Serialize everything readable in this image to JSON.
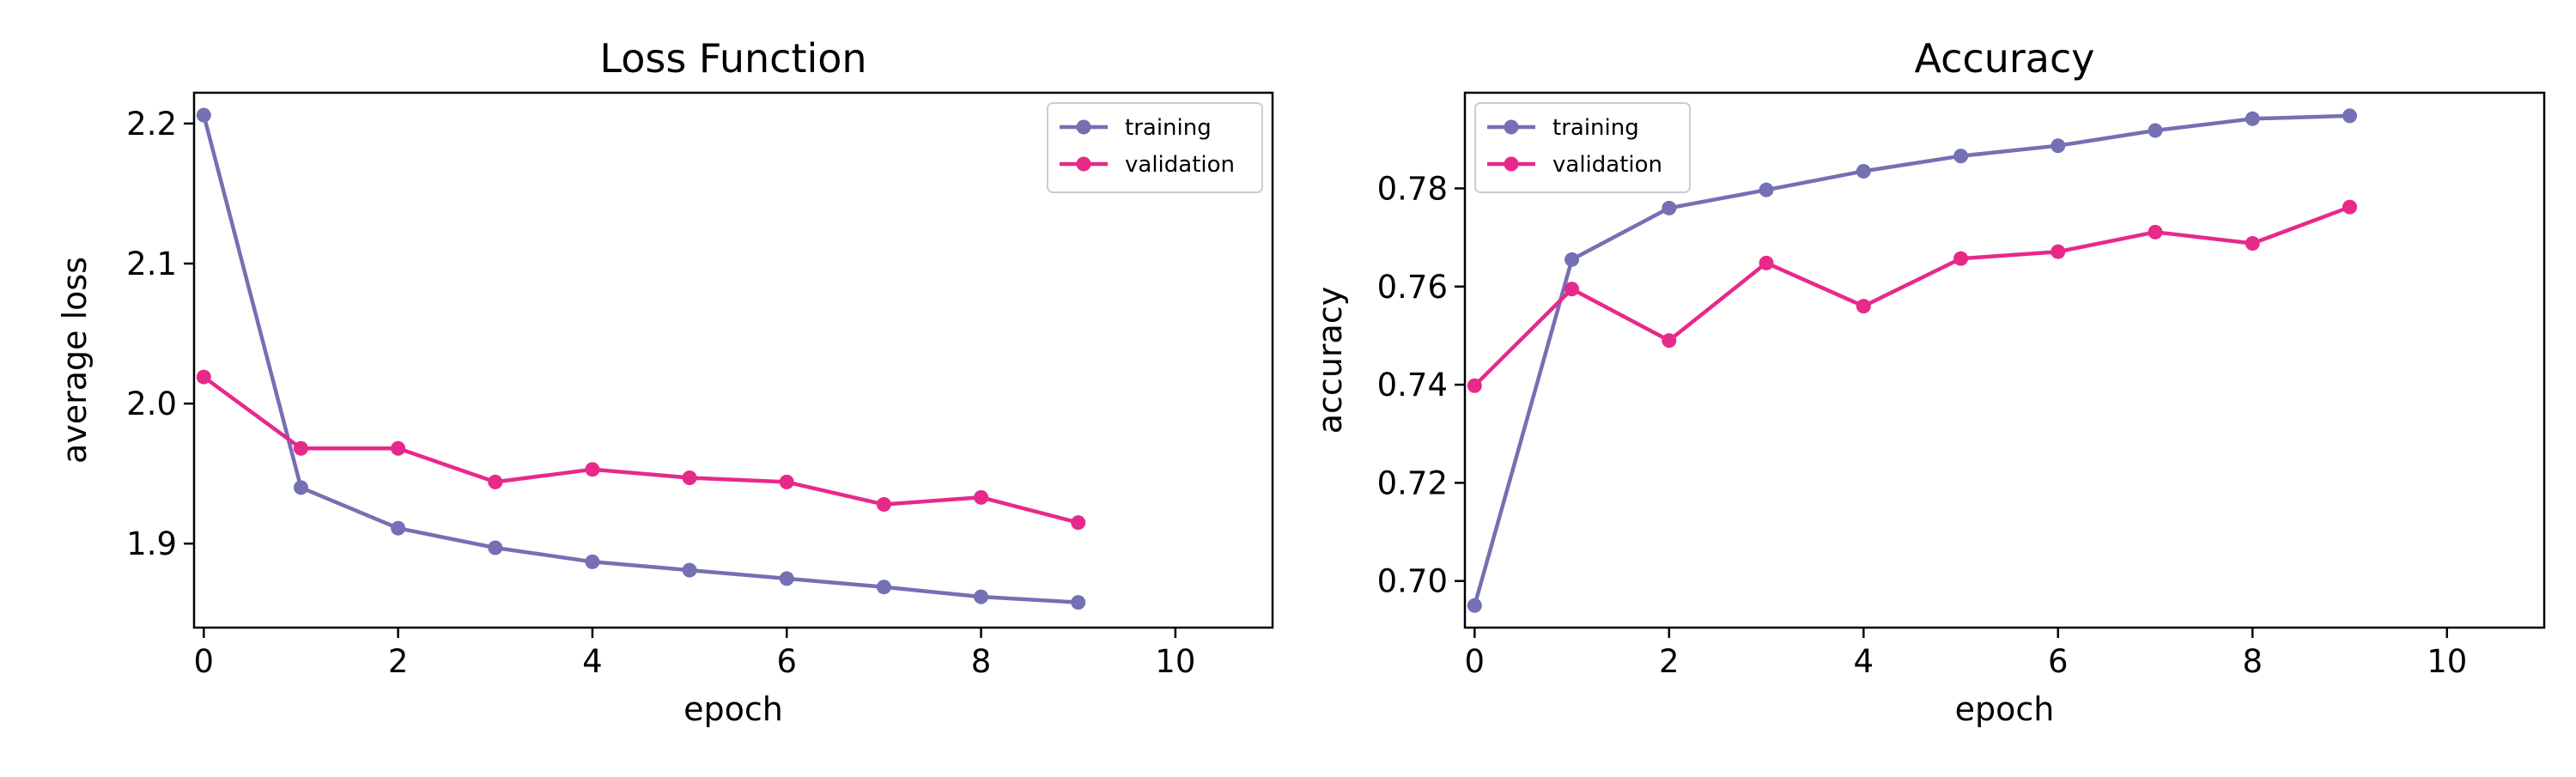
{
  "chart_data": [
    {
      "type": "line",
      "title": "Loss Function",
      "xlabel": "epoch",
      "ylabel": "average loss",
      "xlim": [
        -0.1,
        11
      ],
      "ylim": [
        1.84,
        2.222
      ],
      "xticks": [
        0,
        2,
        4,
        6,
        8,
        10
      ],
      "yticks": [
        1.9,
        2.0,
        2.1,
        2.2
      ],
      "ytick_labels": [
        "1.9",
        "2.0",
        "2.1",
        "2.2"
      ],
      "legend_position": "top-right",
      "grid": false,
      "x": [
        0,
        1,
        2,
        3,
        4,
        5,
        6,
        7,
        8,
        9
      ],
      "series": [
        {
          "name": "training",
          "color": "#7570b3",
          "values": [
            2.206,
            1.94,
            1.911,
            1.897,
            1.887,
            1.881,
            1.875,
            1.869,
            1.862,
            1.858
          ]
        },
        {
          "name": "validation",
          "color": "#e7298a",
          "values": [
            2.019,
            1.968,
            1.968,
            1.944,
            1.953,
            1.947,
            1.944,
            1.928,
            1.933,
            1.915
          ]
        }
      ]
    },
    {
      "type": "line",
      "title": "Accuracy",
      "xlabel": "epoch",
      "ylabel": "accuracy",
      "xlim": [
        -0.1,
        11
      ],
      "ylim": [
        0.6905,
        0.7995
      ],
      "xticks": [
        0,
        2,
        4,
        6,
        8,
        10
      ],
      "yticks": [
        0.7,
        0.72,
        0.74,
        0.76,
        0.78
      ],
      "ytick_labels": [
        "0.70",
        "0.72",
        "0.74",
        "0.76",
        "0.78"
      ],
      "legend_position": "top-left",
      "grid": false,
      "x": [
        0,
        1,
        2,
        3,
        4,
        5,
        6,
        7,
        8,
        9
      ],
      "series": [
        {
          "name": "training",
          "color": "#7570b3",
          "values": [
            0.695,
            0.7655,
            0.776,
            0.7797,
            0.7835,
            0.7866,
            0.7887,
            0.7918,
            0.7942,
            0.7948
          ]
        },
        {
          "name": "validation",
          "color": "#e7298a",
          "values": [
            0.7398,
            0.7595,
            0.749,
            0.7648,
            0.756,
            0.7657,
            0.7671,
            0.7711,
            0.7688,
            0.7762
          ]
        }
      ]
    }
  ]
}
